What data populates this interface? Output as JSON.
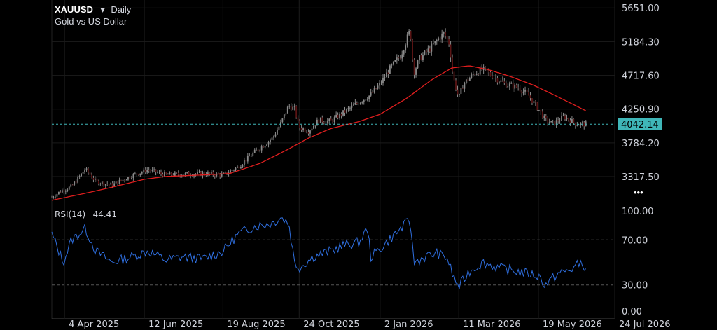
{
  "header": {
    "symbol": "XAUUSD",
    "dropdown_glyph": "▾",
    "timeframe": "Daily",
    "subtitle": "Gold vs US Dollar"
  },
  "rsi_panel": {
    "label": "RSI(14)",
    "value": "44.41"
  },
  "current_price_label": "4042.14",
  "more_glyph": "•••",
  "colors": {
    "background": "#000000",
    "candle": "#8a8a8a",
    "ma_line": "#e01e1e",
    "rsi_line": "#2f6fe0",
    "price_line": "#3fb6b8",
    "price_tag": "#3fb6b8"
  },
  "icons": {
    "more": "more-dots-icon",
    "dropdown": "chevron-down-icon"
  },
  "chart_data": [
    {
      "type": "candlestick",
      "title": "",
      "y_ticks": [
        "5651.00",
        "5184.30",
        "4717.60",
        "4250.90",
        "3784.20",
        "3317.50"
      ],
      "x_ticks": [
        "4 Apr 2025",
        "12 Jun 2025",
        "19 Aug 2025",
        "24 Oct 2025",
        "2 Jan 2026",
        "11 Mar 2026",
        "19 May 2026",
        "24 Jul 2026"
      ],
      "ylim": [
        2940,
        5760
      ],
      "x_range": [
        "2025-03-24",
        "2026-07-24"
      ],
      "current_price": 4042.14,
      "grid": true,
      "price_anchors": [
        [
          "2025-03-24",
          3030
        ],
        [
          "2025-04-01",
          3120
        ],
        [
          "2025-04-10",
          3180
        ],
        [
          "2025-04-22",
          3420
        ],
        [
          "2025-05-01",
          3250
        ],
        [
          "2025-05-15",
          3200
        ],
        [
          "2025-06-01",
          3330
        ],
        [
          "2025-06-15",
          3410
        ],
        [
          "2025-07-01",
          3340
        ],
        [
          "2025-07-15",
          3350
        ],
        [
          "2025-08-01",
          3360
        ],
        [
          "2025-08-19",
          3340
        ],
        [
          "2025-09-01",
          3450
        ],
        [
          "2025-09-15",
          3650
        ],
        [
          "2025-10-01",
          3850
        ],
        [
          "2025-10-08",
          4050
        ],
        [
          "2025-10-15",
          4300
        ],
        [
          "2025-10-20",
          4250
        ],
        [
          "2025-10-24",
          4000
        ],
        [
          "2025-11-01",
          3950
        ],
        [
          "2025-11-10",
          4100
        ],
        [
          "2025-11-20",
          4080
        ],
        [
          "2025-12-01",
          4200
        ],
        [
          "2025-12-15",
          4350
        ],
        [
          "2025-12-25",
          4450
        ],
        [
          "2026-01-02",
          4600
        ],
        [
          "2026-01-10",
          4800
        ],
        [
          "2026-01-20",
          5000
        ],
        [
          "2026-01-28",
          5350
        ],
        [
          "2026-01-31",
          4750
        ],
        [
          "2026-02-05",
          4950
        ],
        [
          "2026-02-15",
          5100
        ],
        [
          "2026-02-20",
          5200
        ],
        [
          "2026-02-26",
          5300
        ],
        [
          "2026-03-03",
          5150
        ],
        [
          "2026-03-06",
          4700
        ],
        [
          "2026-03-11",
          4400
        ],
        [
          "2026-03-15",
          4600
        ],
        [
          "2026-03-25",
          4750
        ],
        [
          "2026-04-01",
          4800
        ],
        [
          "2026-04-10",
          4700
        ],
        [
          "2026-04-20",
          4600
        ],
        [
          "2026-05-01",
          4550
        ],
        [
          "2026-05-10",
          4450
        ],
        [
          "2026-05-19",
          4250
        ],
        [
          "2026-05-25",
          4100
        ],
        [
          "2026-06-01",
          4050
        ],
        [
          "2026-06-10",
          4150
        ],
        [
          "2026-06-20",
          4050
        ],
        [
          "2026-06-30",
          4042
        ]
      ],
      "ma_line": [
        [
          "2025-03-24",
          2990
        ],
        [
          "2025-04-20",
          3080
        ],
        [
          "2025-05-15",
          3170
        ],
        [
          "2025-06-12",
          3280
        ],
        [
          "2025-07-01",
          3320
        ],
        [
          "2025-08-01",
          3340
        ],
        [
          "2025-08-25",
          3360
        ],
        [
          "2025-09-20",
          3500
        ],
        [
          "2025-10-15",
          3700
        ],
        [
          "2025-11-01",
          3850
        ],
        [
          "2025-11-20",
          3980
        ],
        [
          "2025-12-15",
          4080
        ],
        [
          "2026-01-02",
          4180
        ],
        [
          "2026-01-25",
          4400
        ],
        [
          "2026-02-15",
          4650
        ],
        [
          "2026-03-05",
          4820
        ],
        [
          "2026-03-20",
          4850
        ],
        [
          "2026-04-05",
          4800
        ],
        [
          "2026-04-25",
          4700
        ],
        [
          "2026-05-15",
          4580
        ],
        [
          "2026-06-01",
          4450
        ],
        [
          "2026-06-20",
          4300
        ],
        [
          "2026-06-30",
          4220
        ]
      ]
    },
    {
      "type": "line",
      "title": "",
      "y_ticks": [
        "100.00",
        "70.00",
        "30.00",
        "0.00"
      ],
      "ylim": [
        0,
        100
      ],
      "grid": true,
      "rsi_anchors": [
        [
          "2025-03-24",
          75
        ],
        [
          "2025-04-03",
          50
        ],
        [
          "2025-04-10",
          70
        ],
        [
          "2025-04-22",
          80
        ],
        [
          "2025-05-01",
          60
        ],
        [
          "2025-05-15",
          50
        ],
        [
          "2025-06-01",
          55
        ],
        [
          "2025-06-15",
          60
        ],
        [
          "2025-07-01",
          52
        ],
        [
          "2025-07-15",
          55
        ],
        [
          "2025-08-01",
          53
        ],
        [
          "2025-08-19",
          60
        ],
        [
          "2025-09-01",
          75
        ],
        [
          "2025-09-15",
          82
        ],
        [
          "2025-10-01",
          85
        ],
        [
          "2025-10-08",
          90
        ],
        [
          "2025-10-15",
          85
        ],
        [
          "2025-10-20",
          50
        ],
        [
          "2025-10-24",
          45
        ],
        [
          "2025-11-05",
          55
        ],
        [
          "2025-11-20",
          60
        ],
        [
          "2025-12-01",
          65
        ],
        [
          "2025-12-15",
          68
        ],
        [
          "2025-12-22",
          80
        ],
        [
          "2025-12-25",
          55
        ],
        [
          "2026-01-02",
          62
        ],
        [
          "2026-01-15",
          75
        ],
        [
          "2026-01-28",
          88
        ],
        [
          "2026-01-31",
          50
        ],
        [
          "2026-02-10",
          55
        ],
        [
          "2026-02-20",
          58
        ],
        [
          "2026-03-01",
          54
        ],
        [
          "2026-03-06",
          38
        ],
        [
          "2026-03-11",
          28
        ],
        [
          "2026-03-20",
          42
        ],
        [
          "2026-04-01",
          50
        ],
        [
          "2026-04-15",
          45
        ],
        [
          "2026-05-01",
          42
        ],
        [
          "2026-05-19",
          38
        ],
        [
          "2026-05-25",
          30
        ],
        [
          "2026-06-05",
          40
        ],
        [
          "2026-06-15",
          43
        ],
        [
          "2026-06-25",
          50
        ],
        [
          "2026-06-30",
          44.41
        ]
      ]
    }
  ]
}
